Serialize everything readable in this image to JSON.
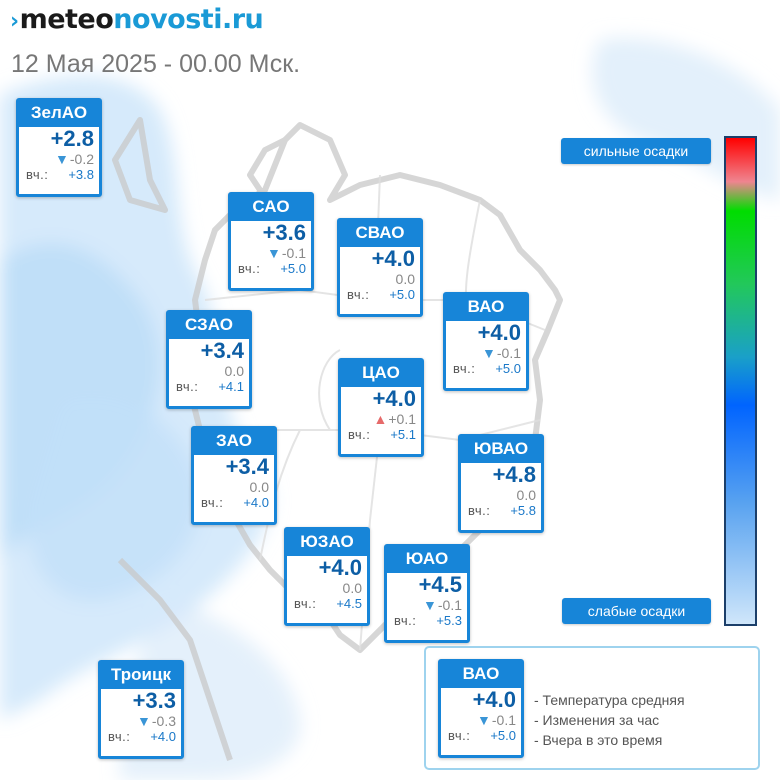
{
  "site": {
    "logo_mark": "›",
    "logo_part1": "meteo",
    "logo_part2": "novosti.ru"
  },
  "datetime": "12 Мая 2025 - 00.00 Мск.",
  "yesterday_label": "вч.:",
  "districts": [
    {
      "name": "ЗелАО",
      "temp": "+2.8",
      "trend": "down",
      "change": "-0.2",
      "yesterday": "+3.8"
    },
    {
      "name": "САО",
      "temp": "+3.6",
      "trend": "down",
      "change": "-0.1",
      "yesterday": "+5.0"
    },
    {
      "name": "СВАО",
      "temp": "+4.0",
      "trend": "none",
      "change": "0.0",
      "yesterday": "+5.0"
    },
    {
      "name": "ВАО",
      "temp": "+4.0",
      "trend": "down",
      "change": "-0.1",
      "yesterday": "+5.0"
    },
    {
      "name": "СЗАО",
      "temp": "+3.4",
      "trend": "none",
      "change": "0.0",
      "yesterday": "+4.1"
    },
    {
      "name": "ЦАО",
      "temp": "+4.0",
      "trend": "up",
      "change": "+0.1",
      "yesterday": "+5.1"
    },
    {
      "name": "ЗАО",
      "temp": "+3.4",
      "trend": "none",
      "change": "0.0",
      "yesterday": "+4.0"
    },
    {
      "name": "ЮВАО",
      "temp": "+4.8",
      "trend": "none",
      "change": "0.0",
      "yesterday": "+5.8"
    },
    {
      "name": "ЮЗАО",
      "temp": "+4.0",
      "trend": "none",
      "change": "0.0",
      "yesterday": "+4.5"
    },
    {
      "name": "ЮАО",
      "temp": "+4.5",
      "trend": "down",
      "change": "-0.1",
      "yesterday": "+5.3"
    },
    {
      "name": "Троицк",
      "temp": "+3.3",
      "trend": "down",
      "change": "-0.3",
      "yesterday": "+4.0"
    }
  ],
  "scale": {
    "top_label": "сильные осадки",
    "bottom_label": "слабые осадки"
  },
  "legend": {
    "sample": {
      "name": "ВАО",
      "temp": "+4.0",
      "trend": "down",
      "change": "-0.1",
      "yesterday": "+5.0"
    },
    "lines": [
      "- Температура средняя",
      "- Изменения за час",
      "- Вчера в это время"
    ]
  },
  "colors": {
    "accent": "#1785d8",
    "temp_text": "#0d5ea5",
    "trend_down": "#3a95d6",
    "trend_up": "#e66a6a",
    "precip_light": "#cfe6fa"
  }
}
